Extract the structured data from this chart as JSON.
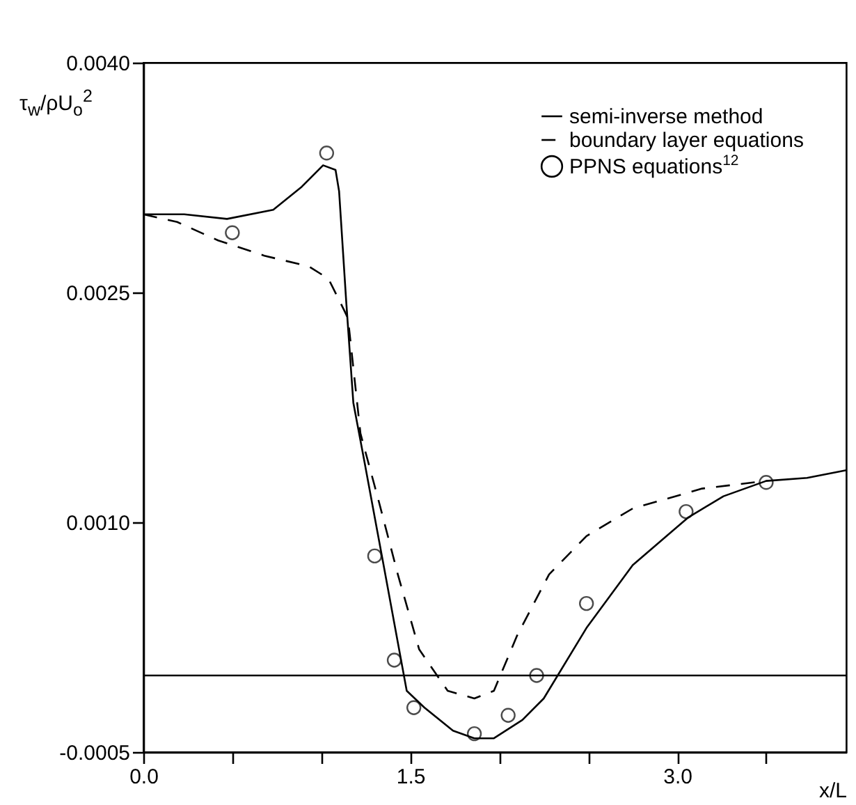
{
  "chart_data": {
    "type": "line",
    "xlabel": "x/L",
    "ylabel": "τ$_{w}$/ρU$_{o}$$^{2}$",
    "xlim": [
      0,
      3.95
    ],
    "xticks": [
      {
        "value": 0,
        "label": "0.0"
      },
      {
        "value": 0.5,
        "label": null
      },
      {
        "value": 1,
        "label": null
      },
      {
        "value": 1.5,
        "label": "1.5"
      },
      {
        "value": 2,
        "label": null
      },
      {
        "value": 2.5,
        "label": null
      },
      {
        "value": 3,
        "label": "3.0"
      },
      {
        "value": 3.5,
        "label": null
      }
    ],
    "ylim": [
      -0.0005,
      0.004
    ],
    "yticks": [
      -0.0005,
      {
        "value": 0.001,
        "label": "0.0010"
      },
      0.0025,
      {
        "value": 0.004,
        "label": "0.0040"
      }
    ],
    "grid": false,
    "legend": "top right",
    "ref_lines": [
      {
        "axis": "y",
        "value": 0,
        "color": "#000000"
      }
    ],
    "series": [
      {
        "name": "semi-inverse method",
        "line_style": "solid",
        "color": "#000000",
        "x": [
          0,
          0.23,
          0.47,
          0.73,
          0.89,
          1.01,
          1.08,
          1.1,
          1.14,
          1.18,
          1.24,
          1.35,
          1.48,
          1.58,
          1.74,
          1.86,
          1.97,
          2.13,
          2.25,
          2.49,
          2.75,
          3.06,
          3.26,
          3.5,
          3.73,
          3.95
        ],
        "values": [
          0.00301,
          0.00301,
          0.00298,
          0.00304,
          0.00319,
          0.00333,
          0.0033,
          0.00316,
          0.00244,
          0.00178,
          0.00141,
          0.00072,
          -0.0001,
          -0.00021,
          -0.00036,
          -0.00041,
          -0.00041,
          -0.00029,
          -0.00015,
          0.00031,
          0.00072,
          0.00103,
          0.00117,
          0.00127,
          0.00129,
          0.00134
        ]
      },
      {
        "name": "boundary layer equations",
        "line_style": "dashed",
        "color": "#000000",
        "x": [
          0,
          0.19,
          0.42,
          0.68,
          0.93,
          1.04,
          1.13,
          1.15,
          1.22,
          1.32,
          1.43,
          1.55,
          1.71,
          1.86,
          1.97,
          2.1,
          2.28,
          2.49,
          2.75,
          3.14,
          3.5
        ],
        "values": [
          0.00301,
          0.00296,
          0.00284,
          0.00274,
          0.00267,
          0.00259,
          0.00238,
          0.00233,
          0.00158,
          0.00115,
          0.00066,
          0.00017,
          -0.0001,
          -0.00015,
          -0.0001,
          0.00026,
          0.00066,
          0.00091,
          0.00109,
          0.00122,
          0.00127
        ]
      },
      {
        "name": "PPNS equations$^{12}$",
        "type": "scatter",
        "marker": "circle",
        "color": "#000000",
        "x": [
          0.5,
          1.03,
          1.3,
          1.41,
          1.52,
          1.86,
          2.05,
          2.21,
          2.49,
          3.05,
          3.5
        ],
        "values": [
          0.00289,
          0.00341,
          0.00078,
          0.0001,
          -0.00021,
          -0.00038,
          -0.00026,
          0,
          0.00047,
          0.00107,
          0.00126
        ]
      }
    ]
  }
}
